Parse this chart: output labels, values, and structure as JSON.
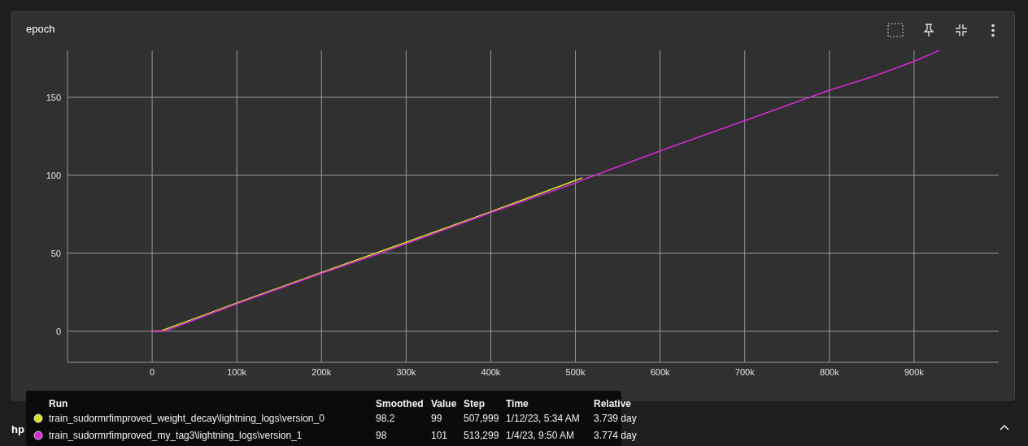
{
  "chart_data": {
    "type": "line",
    "title": "epoch",
    "series": [
      {
        "name": "train_sudormrfimproved_weight_decay\\lightning_logs\\version_0",
        "color": "#d4e22a",
        "x": [
          0,
          10000,
          100000,
          200000,
          300000,
          400000,
          507999
        ],
        "values": [
          0,
          0,
          18,
          37.5,
          57,
          76.5,
          98.2
        ]
      },
      {
        "name": "train_sudormrfimproved_my_tag3\\lightning_logs\\version_1",
        "color": "#d22ad2",
        "x": [
          0,
          15000,
          100000,
          200000,
          270000,
          300000,
          400000,
          500000,
          513299,
          600000,
          700000,
          800000,
          850000,
          900000,
          930000
        ],
        "values": [
          0,
          0,
          17.5,
          37,
          50,
          56,
          76,
          95,
          98,
          115.5,
          135,
          154.5,
          163,
          173,
          180
        ]
      }
    ],
    "xlim": [
      -100000,
      1000000
    ],
    "xticks": [
      {
        "value": 0,
        "label": "0"
      },
      {
        "value": 100000,
        "label": "100k"
      },
      {
        "value": 200000,
        "label": "200k"
      },
      {
        "value": 300000,
        "label": "300k"
      },
      {
        "value": 400000,
        "label": "400k"
      },
      {
        "value": 500000,
        "label": "500k"
      },
      {
        "value": 600000,
        "label": "600k"
      },
      {
        "value": 700000,
        "label": "700k"
      },
      {
        "value": 800000,
        "label": "800k"
      },
      {
        "value": 900000,
        "label": "900k"
      }
    ],
    "ylim": [
      -20,
      180
    ],
    "yticks": [
      0,
      50,
      100,
      150
    ],
    "grid": true,
    "legend": "bottom left",
    "marker": "none",
    "line_style": "solid",
    "annotations": [
      "hp",
      "Run",
      "Smoothed",
      "Value",
      "Step",
      "Time",
      "Relative",
      "98.2",
      "99",
      "507,999",
      "1/12/23, 5:34 AM",
      "3.739 day",
      "98",
      "101",
      "513,299",
      "1/4/23, 9:50 AM",
      "3.774 day"
    ]
  }
}
